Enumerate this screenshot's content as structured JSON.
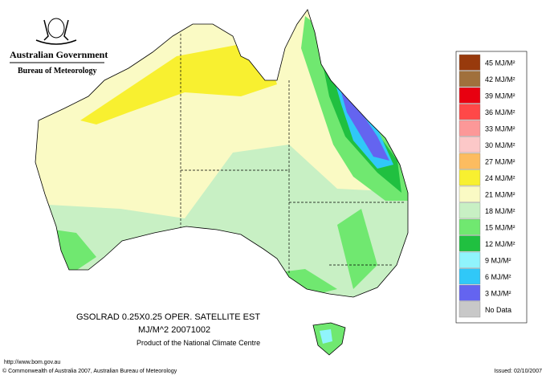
{
  "header": {
    "government": "Australian Government",
    "bureau": "Bureau of Meteorology"
  },
  "legend": [
    {
      "label": "45 MJ/M²",
      "color": "#983a0c"
    },
    {
      "label": "42 MJ/M²",
      "color": "#a0703c"
    },
    {
      "label": "39 MJ/M²",
      "color": "#e80010"
    },
    {
      "label": "36 MJ/M²",
      "color": "#ff4848"
    },
    {
      "label": "33 MJ/M²",
      "color": "#fc9898"
    },
    {
      "label": "30 MJ/M²",
      "color": "#fcc8c8"
    },
    {
      "label": "27 MJ/M²",
      "color": "#fcbc60"
    },
    {
      "label": "24 MJ/M²",
      "color": "#f8f030"
    },
    {
      "label": "21 MJ/M²",
      "color": "#fafac4"
    },
    {
      "label": "18 MJ/M²",
      "color": "#c8f0c4"
    },
    {
      "label": "15 MJ/M²",
      "color": "#70e870"
    },
    {
      "label": "12 MJ/M²",
      "color": "#20c040"
    },
    {
      "label": "9 MJ/M²",
      "color": "#90f4fc"
    },
    {
      "label": "6 MJ/M²",
      "color": "#30c8f8"
    },
    {
      "label": "3 MJ/M²",
      "color": "#6464f0"
    }
  ],
  "no_data": {
    "label": "No Data",
    "color": "#c8c8c8"
  },
  "caption": {
    "line1": "GSOLRAD    0.25X0.25 OPER. SATELLITE EST",
    "line2": "MJ/M^2  20071002",
    "line3": "Product of the National Climate Centre"
  },
  "footer": {
    "url": "http://www.bom.gov.au",
    "copyright": "© Commonwealth of Australia 2007, Australian Bureau of Meteorology",
    "issued": "Issued: 02/10/2007"
  }
}
